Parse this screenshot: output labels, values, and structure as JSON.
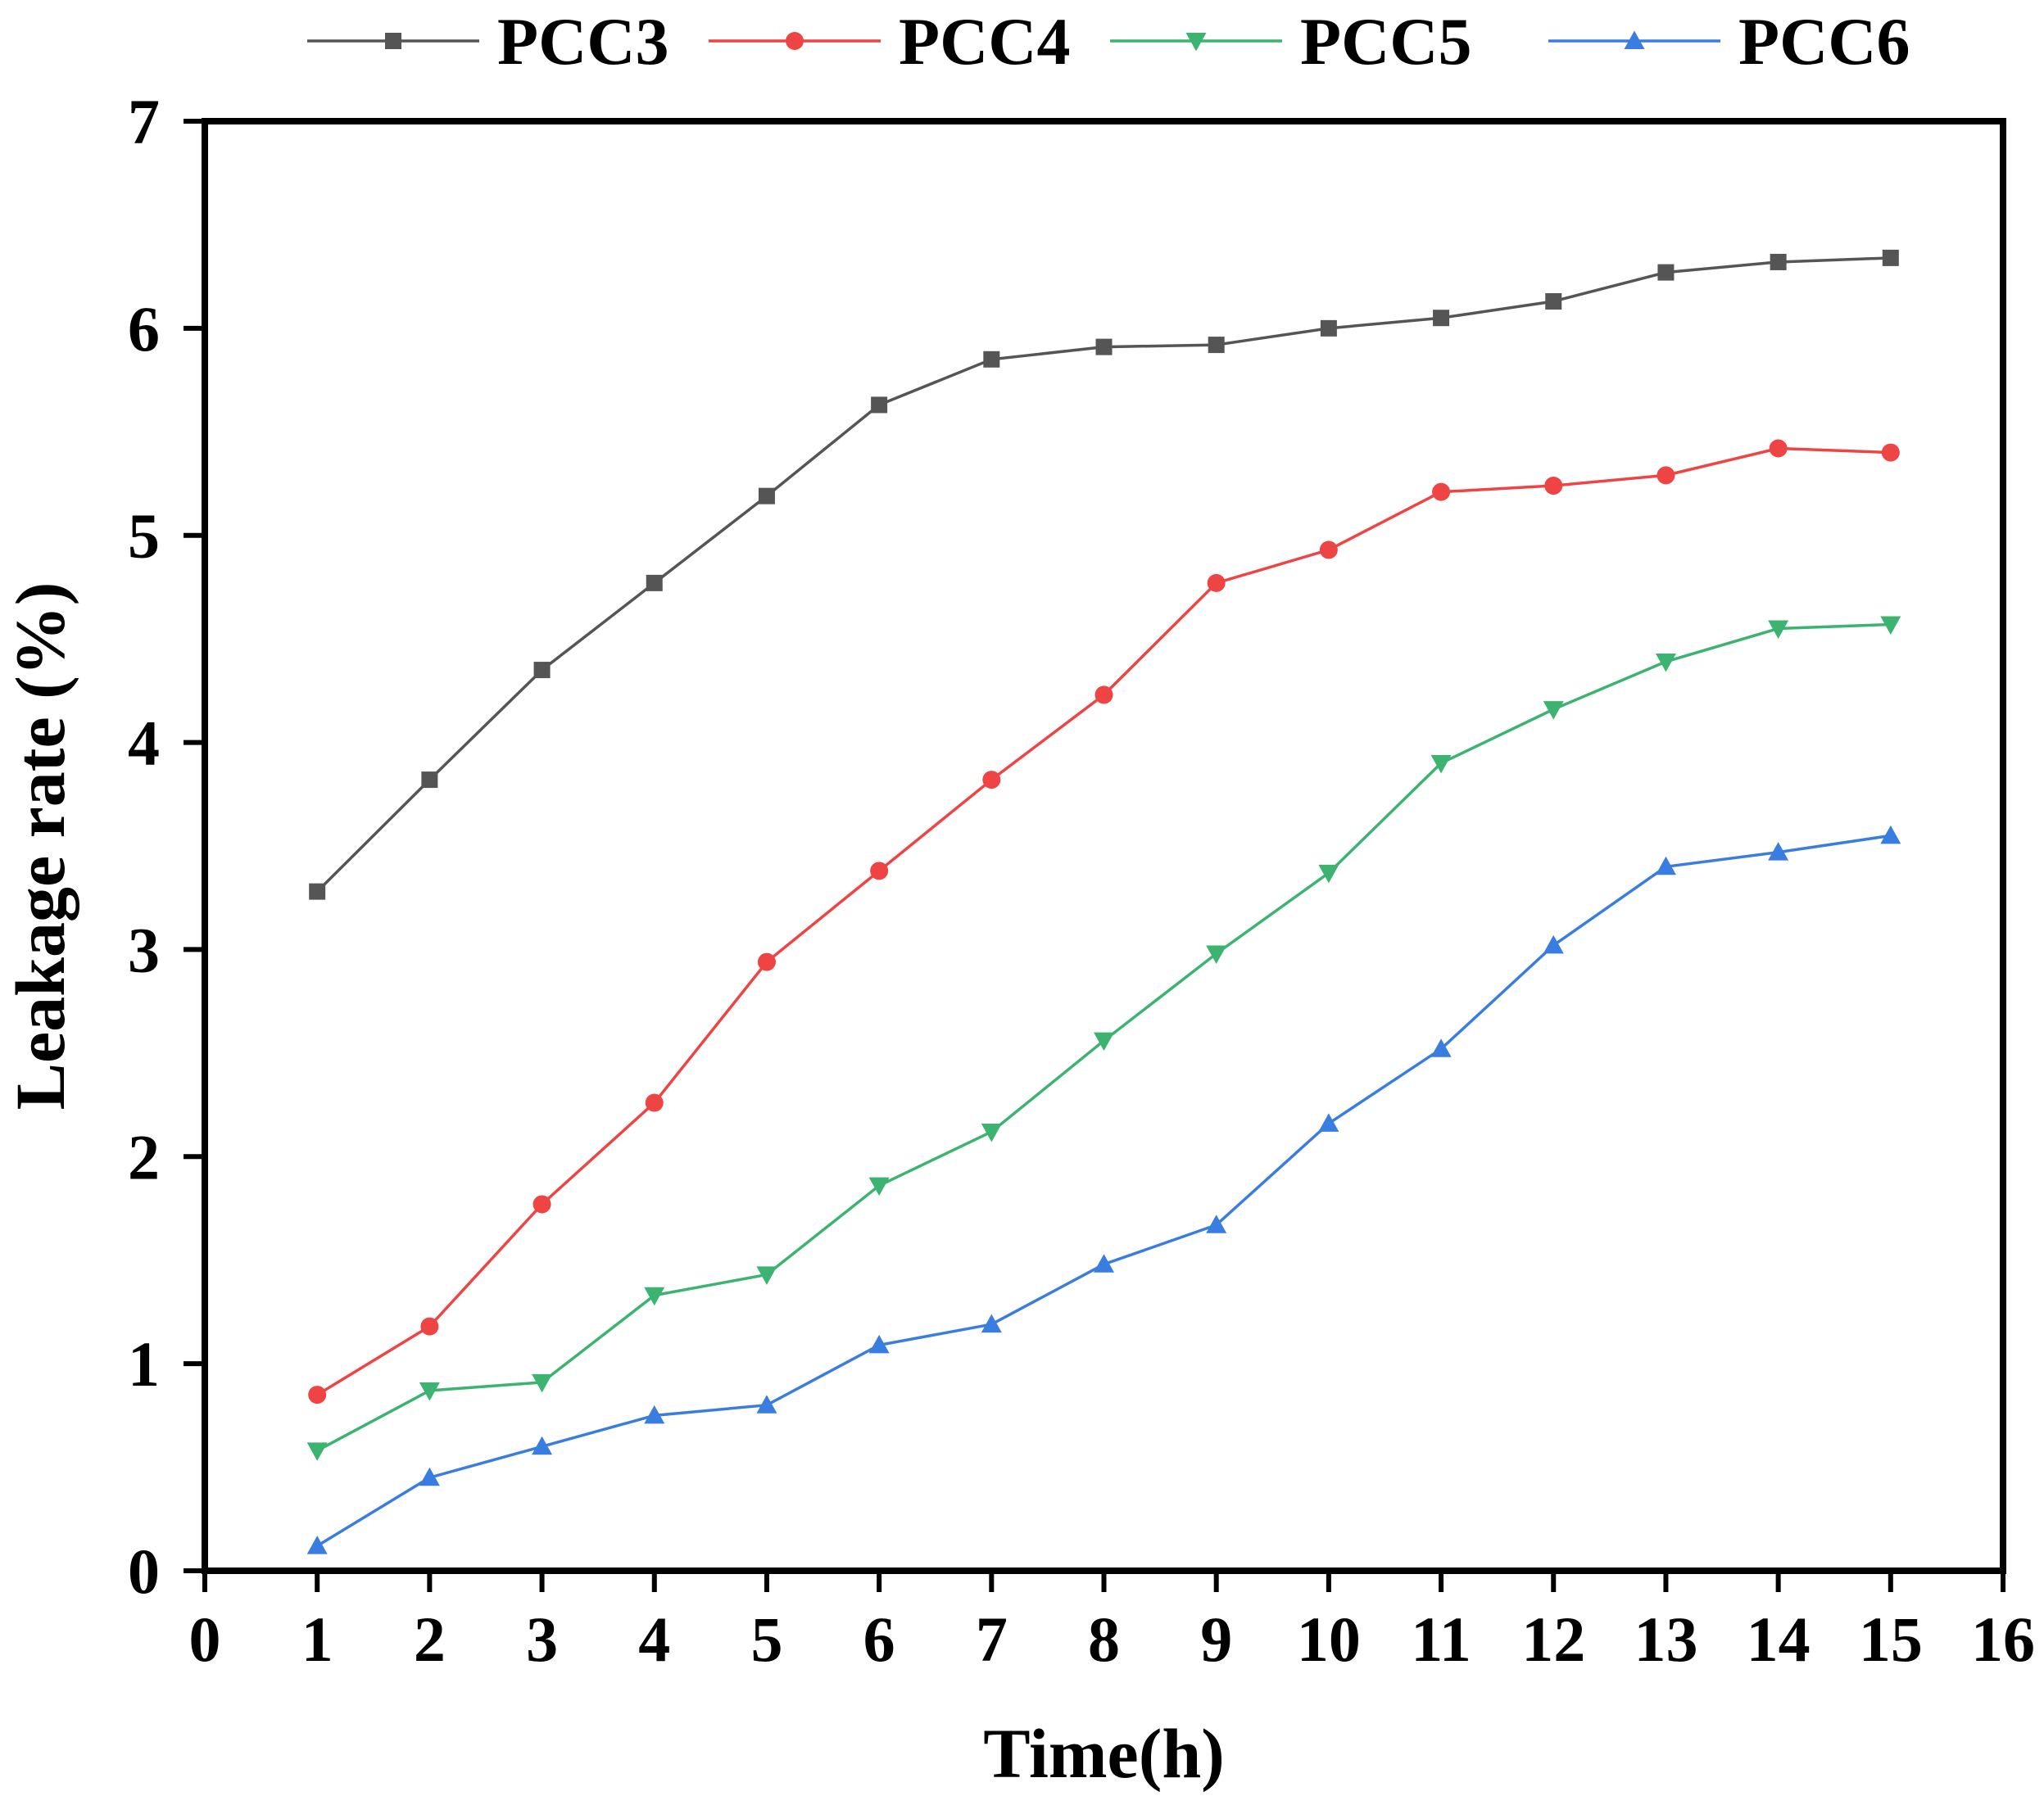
{
  "chart_data": {
    "type": "line",
    "title": "",
    "xlabel": "Time(h)",
    "ylabel": "Leakage rate (%)",
    "xlim": [
      0,
      16
    ],
    "ylim": [
      0,
      7
    ],
    "xticks": [
      0,
      1,
      2,
      3,
      4,
      5,
      6,
      7,
      8,
      9,
      10,
      11,
      12,
      13,
      14,
      15,
      16
    ],
    "yticks": [
      0,
      1,
      2,
      3,
      4,
      5,
      6,
      7
    ],
    "x": [
      1,
      2,
      3,
      4,
      5,
      6,
      7,
      8,
      9,
      10,
      11,
      12,
      13,
      14,
      15
    ],
    "legend_position": "top",
    "grid": false,
    "series": [
      {
        "name": "PCC3",
        "color": "#555555",
        "marker": "square",
        "values": [
          3.28,
          3.82,
          4.35,
          4.77,
          5.19,
          5.63,
          5.85,
          5.91,
          5.92,
          6.0,
          6.05,
          6.13,
          6.27,
          6.32,
          6.34
        ]
      },
      {
        "name": "PCC4",
        "color": "#ee4444",
        "marker": "circle",
        "values": [
          0.85,
          1.18,
          1.77,
          2.26,
          2.94,
          3.38,
          3.82,
          4.23,
          4.77,
          4.93,
          5.21,
          5.24,
          5.29,
          5.42,
          5.4
        ]
      },
      {
        "name": "PCC5",
        "color": "#3cb371",
        "marker": "triangle-down",
        "values": [
          0.58,
          0.87,
          0.91,
          1.33,
          1.43,
          1.86,
          2.12,
          2.56,
          2.98,
          3.37,
          3.9,
          4.16,
          4.39,
          4.55,
          4.57
        ]
      },
      {
        "name": "PCC6",
        "color": "#3a7de0",
        "marker": "triangle-up",
        "values": [
          0.12,
          0.45,
          0.6,
          0.75,
          0.8,
          1.09,
          1.19,
          1.48,
          1.67,
          2.16,
          2.52,
          3.02,
          3.4,
          3.47,
          3.55
        ]
      }
    ]
  }
}
